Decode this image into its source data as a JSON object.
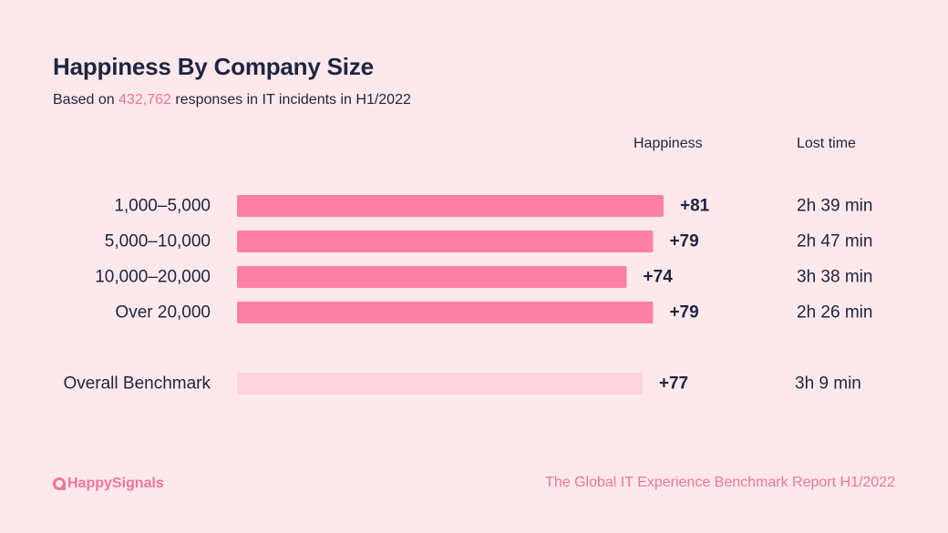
{
  "header": {
    "title": "Happiness By Company Size",
    "subtitle_prefix": "Based on ",
    "subtitle_count": "432,762",
    "subtitle_suffix": " responses in IT incidents in H1/2022"
  },
  "columns": {
    "happiness": "Happiness",
    "lost_time": "Lost time"
  },
  "footer": {
    "brand": "HappySignals",
    "report": "The Global IT Experience Benchmark Report H1/2022"
  },
  "colors": {
    "bar": "#ff80a6",
    "benchmark_bar": "#fdd3de",
    "accent": "#f0759c",
    "text": "#1f2540"
  },
  "chart_data": {
    "type": "bar",
    "orientation": "horizontal",
    "title": "Happiness By Company Size",
    "categories": [
      "1,000–5,000",
      "5,000–10,000",
      "10,000–20,000",
      "Over 20,000"
    ],
    "values": [
      81,
      79,
      74,
      79
    ],
    "value_labels": [
      "+81",
      "+79",
      "+74",
      "+79"
    ],
    "lost_time": [
      "2h 39 min",
      "2h 47 min",
      "3h 38 min",
      "2h 26 min"
    ],
    "benchmark": {
      "label": "Overall Benchmark",
      "value": 77,
      "value_label": "+77",
      "lost_time": "3h 9 min"
    },
    "xlim": [
      0,
      81
    ],
    "grid": false
  }
}
